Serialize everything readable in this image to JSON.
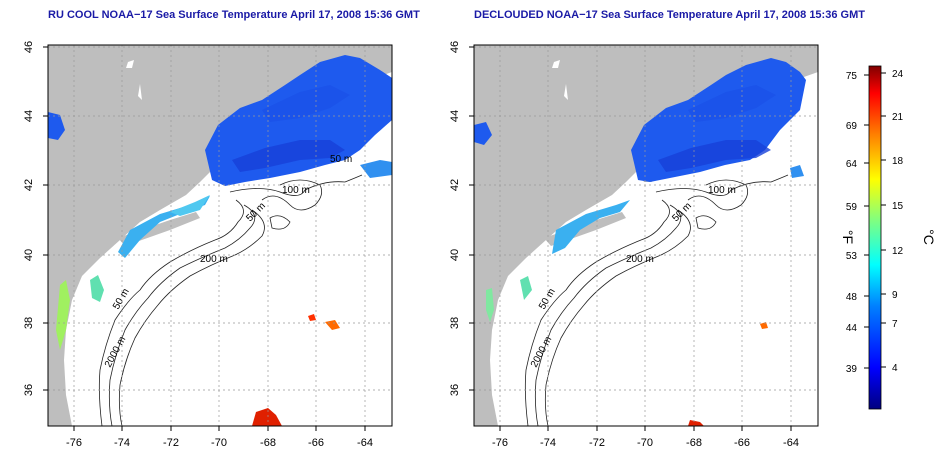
{
  "panels": [
    {
      "title": "RU COOL NOAA−17 Sea Surface Temperature April 17, 2008 15:36 GMT",
      "x_ticks": [
        "-76",
        "-74",
        "-72",
        "-70",
        "-68",
        "-66",
        "-64"
      ],
      "y_ticks": [
        "36",
        "38",
        "40",
        "42",
        "44",
        "46"
      ],
      "contours": [
        "50 m",
        "100 m",
        "50 m",
        "200 m",
        "50 m",
        "2000 m"
      ]
    },
    {
      "title": "DECLOUDED NOAA−17 Sea Surface Temperature April 17, 2008 15:36 GMT",
      "x_ticks": [
        "-76",
        "-74",
        "-72",
        "-70",
        "-68",
        "-66",
        "-64"
      ],
      "y_ticks": [
        "36",
        "38",
        "40",
        "42",
        "44",
        "46"
      ],
      "contours": [
        "100 m",
        "50 m",
        "200 m",
        "50 m",
        "2000 m"
      ]
    }
  ],
  "colorbar": {
    "fahrenheit_ticks": [
      "75",
      "69",
      "64",
      "59",
      "53",
      "48",
      "44",
      "39"
    ],
    "celsius_ticks": [
      "24",
      "21",
      "18",
      "15",
      "12",
      "9",
      "7",
      "4"
    ],
    "unit_f": "°F",
    "unit_c": "°C",
    "colors": [
      "#000080",
      "#0000ff",
      "#0080ff",
      "#00ffff",
      "#80ff80",
      "#ffff00",
      "#ff8000",
      "#ff0000",
      "#800000"
    ]
  },
  "colors": {
    "land": "#bebebe",
    "title": "#1a1aa6"
  }
}
